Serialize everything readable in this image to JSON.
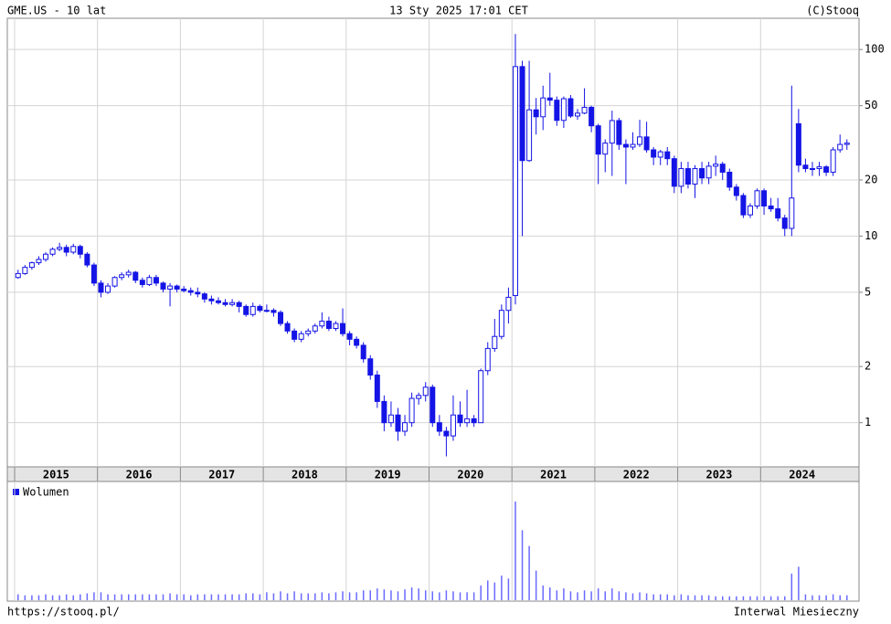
{
  "chart_data": {
    "type": "candlestick",
    "title": "GME.US - 10 lat",
    "subtitle": "13 Sty 2025 17:01 CET",
    "source": "(C)Stooq",
    "footer_left": "https://stooq.pl/",
    "footer_right": "Interwal Miesieczny",
    "log_scale": true,
    "grid": true,
    "color": "#1414e6",
    "ylim": [
      0.58,
      147
    ],
    "yticks": [
      1,
      2,
      5,
      10,
      20,
      50,
      100
    ],
    "xticks": [
      {
        "value": 0,
        "label": "2015"
      },
      {
        "value": 12,
        "label": "2016"
      },
      {
        "value": 24,
        "label": "2017"
      },
      {
        "value": 36,
        "label": "2018"
      },
      {
        "value": 48,
        "label": "2019"
      },
      {
        "value": 60,
        "label": "2020"
      },
      {
        "value": 72,
        "label": "2021"
      },
      {
        "value": 84,
        "label": "2022"
      },
      {
        "value": 96,
        "label": "2023"
      },
      {
        "value": 108,
        "label": "2024"
      }
    ],
    "categories": [
      null,
      null,
      null,
      null,
      null,
      null,
      null,
      null,
      null,
      null,
      null,
      null,
      null,
      null,
      null,
      null,
      null,
      null,
      null,
      null,
      null,
      null,
      null,
      null,
      null,
      null,
      null,
      null,
      null,
      null,
      null,
      null,
      null,
      null,
      null,
      null,
      null,
      null,
      null,
      null,
      null,
      null,
      null,
      null,
      null,
      null,
      null,
      null,
      null,
      null,
      null,
      null,
      null,
      null,
      null,
      null,
      null,
      null,
      null,
      null,
      null,
      null,
      null,
      null,
      null,
      null,
      null,
      null,
      null,
      null,
      null,
      null,
      null,
      null,
      null,
      null,
      null,
      null,
      null,
      null,
      null,
      null,
      null,
      null,
      null,
      null,
      null,
      null,
      null,
      null,
      null,
      null,
      null,
      null,
      null,
      null,
      null,
      null,
      null,
      null,
      null,
      null,
      null,
      null,
      null,
      null,
      null,
      null,
      null,
      null,
      null,
      null,
      null,
      null,
      null,
      null,
      null,
      null,
      null,
      null,
      null
    ],
    "open": [
      6.0,
      6.3,
      6.8,
      7.2,
      7.5,
      8.0,
      8.5,
      8.7,
      8.2,
      8.8,
      8.0,
      7.0,
      5.6,
      5.0,
      5.4,
      6.0,
      6.2,
      6.4,
      5.8,
      5.5,
      6.0,
      5.6,
      5.2,
      5.4,
      5.2,
      5.1,
      5.0,
      4.9,
      4.6,
      4.5,
      4.4,
      4.3,
      4.4,
      4.2,
      3.8,
      4.2,
      4.0,
      4.0,
      3.9,
      3.4,
      3.1,
      2.8,
      3.0,
      3.1,
      3.3,
      3.5,
      3.2,
      3.4,
      3.0,
      2.8,
      2.6,
      2.2,
      1.8,
      1.3,
      1.0,
      1.1,
      0.9,
      1.0,
      1.35,
      1.4,
      1.55,
      1.0,
      0.9,
      0.85,
      1.1,
      1.0,
      1.05,
      1.0,
      1.9,
      2.5,
      2.9,
      4.0,
      4.8,
      81,
      25.4,
      47.5,
      43.6,
      55,
      53.5,
      41.7,
      54.5,
      44,
      45.6,
      49,
      39,
      27.5,
      31.5,
      41.6,
      31,
      30,
      31,
      34,
      29,
      26.5,
      28.3,
      26,
      18.5,
      23,
      19,
      23,
      20.5,
      23.7,
      24.3,
      22,
      18.3,
      16.5,
      13,
      14.5,
      17.5,
      14.5,
      14,
      12.5,
      11,
      40,
      24,
      23,
      23,
      23.5,
      22,
      29,
      31
    ],
    "high": [
      6.6,
      7.0,
      7.3,
      7.8,
      8.2,
      8.7,
      9.2,
      9.0,
      9.1,
      9.0,
      8.2,
      7.2,
      5.8,
      5.6,
      6.1,
      6.4,
      6.6,
      6.5,
      6.0,
      6.2,
      6.2,
      5.7,
      5.6,
      5.5,
      5.4,
      5.3,
      5.3,
      5.0,
      4.8,
      4.7,
      4.6,
      4.6,
      4.5,
      4.3,
      4.4,
      4.3,
      4.3,
      4.1,
      4.0,
      3.5,
      3.2,
      3.1,
      3.2,
      3.4,
      3.9,
      3.7,
      3.5,
      4.1,
      3.1,
      2.9,
      2.7,
      2.3,
      1.9,
      1.4,
      1.3,
      1.2,
      1.1,
      1.45,
      1.45,
      1.65,
      1.6,
      1.1,
      0.95,
      1.4,
      1.3,
      1.5,
      1.1,
      1.95,
      2.7,
      3.6,
      4.3,
      5.3,
      121,
      87,
      87,
      55,
      64,
      75,
      56,
      56,
      57,
      48,
      62,
      50,
      40,
      33,
      47,
      43,
      33,
      36,
      42,
      41,
      30,
      29,
      30,
      27,
      25,
      25,
      24,
      25,
      25,
      27,
      25,
      23,
      19,
      17,
      15,
      18,
      18,
      16,
      16,
      13,
      64,
      48,
      26,
      25,
      25,
      24,
      30,
      35,
      33
    ],
    "low": [
      5.9,
      6.2,
      6.6,
      7.0,
      7.3,
      7.8,
      8.3,
      7.8,
      8.0,
      7.6,
      6.8,
      5.4,
      4.7,
      4.9,
      5.3,
      5.8,
      6.0,
      5.6,
      5.3,
      5.4,
      5.4,
      5.0,
      4.2,
      5.0,
      5.0,
      4.8,
      4.7,
      4.4,
      4.3,
      4.3,
      4.2,
      4.2,
      3.9,
      3.7,
      3.7,
      3.9,
      3.9,
      3.7,
      3.3,
      3.0,
      2.7,
      2.7,
      2.9,
      3.0,
      3.2,
      3.1,
      3.1,
      2.9,
      2.6,
      2.5,
      2.1,
      1.7,
      1.2,
      0.9,
      0.95,
      0.8,
      0.85,
      0.95,
      1.25,
      1.3,
      0.95,
      0.85,
      0.66,
      0.8,
      0.95,
      0.95,
      0.95,
      1.0,
      1.8,
      2.4,
      2.8,
      3.4,
      4.3,
      10,
      25,
      35,
      37,
      50,
      39,
      38,
      43,
      42,
      45,
      36,
      19,
      22,
      21,
      29,
      19,
      29,
      30,
      28,
      24,
      24,
      24,
      17,
      17,
      18,
      16,
      19,
      19,
      21,
      20,
      17.5,
      15.5,
      12.5,
      12.5,
      14,
      13,
      13.5,
      12,
      10,
      10,
      22,
      22,
      21,
      21,
      21,
      21,
      28,
      29
    ],
    "close": [
      6.3,
      6.8,
      7.2,
      7.5,
      8.0,
      8.5,
      8.7,
      8.2,
      8.8,
      8.0,
      7.0,
      5.6,
      5.0,
      5.4,
      6.0,
      6.2,
      6.4,
      5.8,
      5.5,
      6.0,
      5.6,
      5.2,
      5.4,
      5.2,
      5.1,
      5.0,
      4.9,
      4.6,
      4.5,
      4.4,
      4.3,
      4.4,
      4.2,
      3.8,
      4.2,
      4.0,
      4.0,
      3.9,
      3.4,
      3.1,
      2.8,
      3.0,
      3.1,
      3.3,
      3.5,
      3.2,
      3.4,
      3.0,
      2.8,
      2.6,
      2.2,
      1.8,
      1.3,
      1.0,
      1.1,
      0.9,
      1.0,
      1.35,
      1.4,
      1.55,
      1.0,
      0.9,
      0.85,
      1.1,
      1.0,
      1.05,
      1.0,
      1.9,
      2.5,
      2.9,
      4.0,
      4.7,
      81,
      25.4,
      47.5,
      43.6,
      55,
      53.5,
      41.7,
      54.5,
      44,
      45.6,
      49,
      39,
      27.5,
      31.5,
      41.6,
      31,
      30,
      31,
      34,
      29,
      26.5,
      28.3,
      26,
      18.5,
      23,
      19,
      23,
      20.5,
      23.7,
      24.3,
      22,
      18.3,
      16.5,
      13,
      14.5,
      17.5,
      14.5,
      14,
      12.5,
      11,
      16,
      24,
      23,
      23,
      23.5,
      22,
      29,
      31,
      31.5
    ],
    "volume": {
      "name": "Wolumen",
      "color": "#6a6aff",
      "values": [
        6,
        5,
        5,
        5,
        6,
        5,
        5,
        6,
        5,
        6,
        7,
        8,
        8,
        6,
        6,
        6,
        6,
        6,
        6,
        6,
        6,
        6,
        7,
        6,
        6,
        5,
        6,
        6,
        6,
        6,
        6,
        6,
        6,
        7,
        7,
        6,
        8,
        7,
        9,
        7,
        9,
        7,
        7,
        7,
        8,
        7,
        8,
        9,
        8,
        8,
        10,
        10,
        12,
        11,
        10,
        9,
        11,
        13,
        12,
        10,
        9,
        8,
        10,
        9,
        8,
        8,
        8,
        15,
        20,
        18,
        25,
        22,
        100,
        71,
        55,
        30,
        15,
        13,
        10,
        12,
        9,
        8,
        10,
        9,
        12,
        9,
        12,
        9,
        8,
        7,
        8,
        7,
        6,
        6,
        6,
        5,
        6,
        5,
        5,
        5,
        5,
        4,
        4,
        4,
        4,
        4,
        4,
        4,
        4,
        4,
        4,
        4,
        27,
        34,
        6,
        5,
        5,
        5,
        6,
        5,
        5
      ]
    }
  }
}
